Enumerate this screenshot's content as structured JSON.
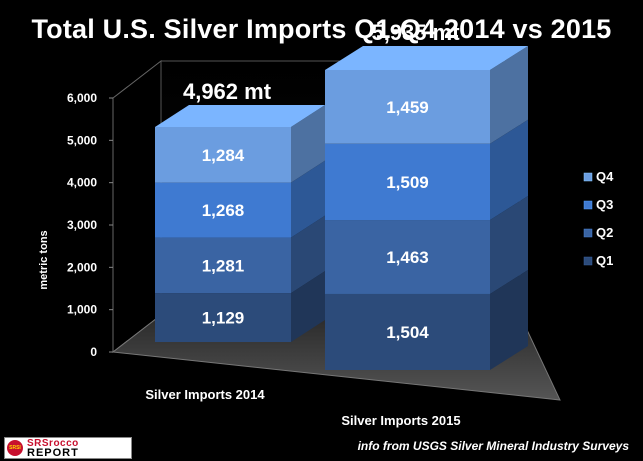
{
  "title": "Total U.S. Silver Imports Q1-Q4 2014 vs 2015",
  "source_note": "info from USGS Silver Mineral Industry Surveys",
  "logo": {
    "badge_text": "SRSI",
    "line1": "SRSrocco",
    "line2": "REPORT"
  },
  "chart_data": {
    "type": "bar",
    "stacked": true,
    "three_d": true,
    "title": "Total U.S. Silver Imports Q1-Q4 2014 vs 2015",
    "xlabel": "",
    "ylabel": "metric tons",
    "ylim": [
      0,
      6000
    ],
    "yticks": [
      0,
      1000,
      2000,
      3000,
      4000,
      5000,
      6000
    ],
    "ytick_labels": [
      "0",
      "1,000",
      "2,000",
      "3,000",
      "4,000",
      "5,000",
      "6,000"
    ],
    "categories": [
      "Silver  Imports 2014",
      "Silver  Imports 2015"
    ],
    "series": [
      {
        "name": "Q1",
        "values": [
          1129,
          1504
        ],
        "labels": [
          "1,129",
          "1,504"
        ],
        "color": "#2c4b7a"
      },
      {
        "name": "Q2",
        "values": [
          1281,
          1463
        ],
        "labels": [
          "1,281",
          "1,463"
        ],
        "color": "#3a64a3"
      },
      {
        "name": "Q3",
        "values": [
          1268,
          1509
        ],
        "labels": [
          "1,268",
          "1,509"
        ],
        "color": "#3f7ad1"
      },
      {
        "name": "Q4",
        "values": [
          1284,
          1459
        ],
        "labels": [
          "1,284",
          "1,459"
        ],
        "color": "#6b9de0"
      }
    ],
    "totals": [
      4962,
      5935
    ],
    "total_labels": [
      "4,962 mt",
      "5,935 mt"
    ],
    "legend": {
      "placement": "right",
      "order": [
        "Q4",
        "Q3",
        "Q2",
        "Q1"
      ]
    },
    "grid": false
  }
}
